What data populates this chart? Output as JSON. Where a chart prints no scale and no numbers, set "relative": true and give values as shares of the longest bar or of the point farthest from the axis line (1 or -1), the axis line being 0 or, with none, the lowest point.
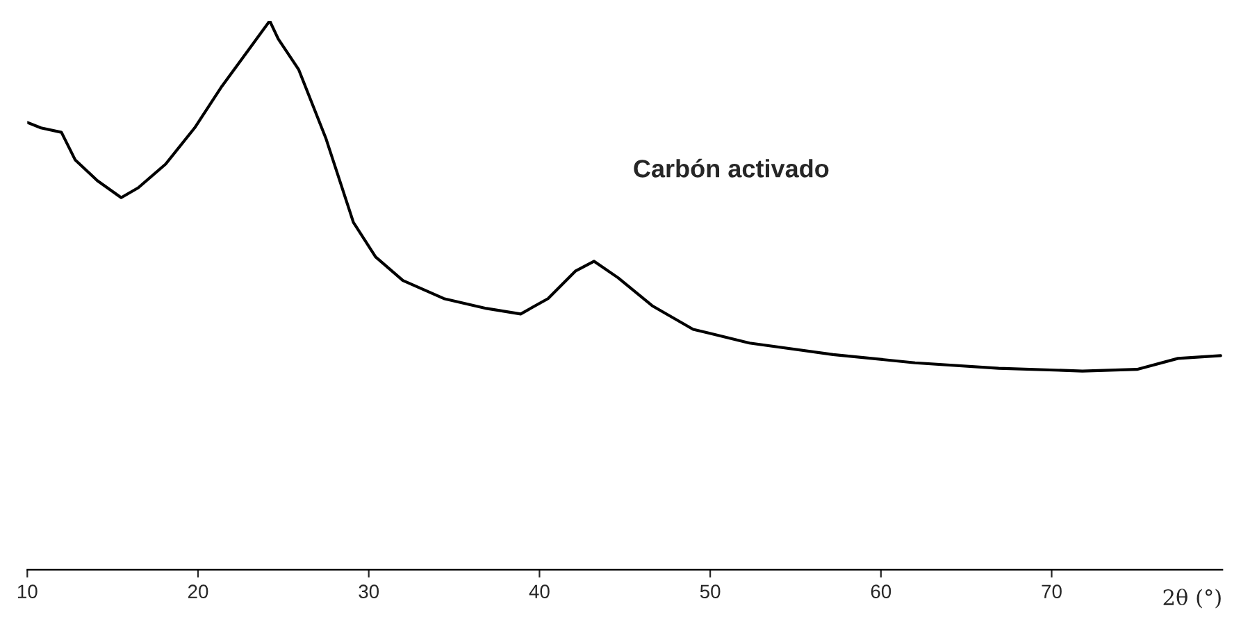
{
  "chart_data": {
    "type": "line",
    "relative": true,
    "xlabel": "2θ (°)",
    "annotations": [
      "Carbón activado"
    ],
    "xlim": [
      10,
      80
    ],
    "xticks": [
      10,
      20,
      30,
      40,
      50,
      60,
      70
    ],
    "series": [
      {
        "color": "#000000",
        "x": [
          10,
          10.8,
          12.0,
          12.8,
          14.1,
          15.5,
          16.5,
          18.1,
          19.8,
          21.4,
          23.0,
          24.2,
          24.7,
          25.9,
          27.5,
          29.1,
          30.4,
          32.0,
          34.4,
          36.9,
          38.9,
          40.5,
          42.1,
          43.2,
          44.6,
          46.6,
          49.0,
          52.3,
          57.2,
          62.0,
          66.9,
          71.8,
          75.0,
          77.4,
          79.9
        ],
        "values": [
          0.815,
          0.805,
          0.797,
          0.747,
          0.709,
          0.678,
          0.696,
          0.739,
          0.805,
          0.881,
          0.949,
          1,
          0.967,
          0.911,
          0.785,
          0.633,
          0.57,
          0.527,
          0.494,
          0.476,
          0.466,
          0.494,
          0.544,
          0.562,
          0.532,
          0.481,
          0.438,
          0.413,
          0.392,
          0.377,
          0.367,
          0.362,
          0.365,
          0.385,
          0.39
        ]
      }
    ],
    "grid": false,
    "legend": false,
    "marker": "none",
    "line_style": "solid"
  }
}
